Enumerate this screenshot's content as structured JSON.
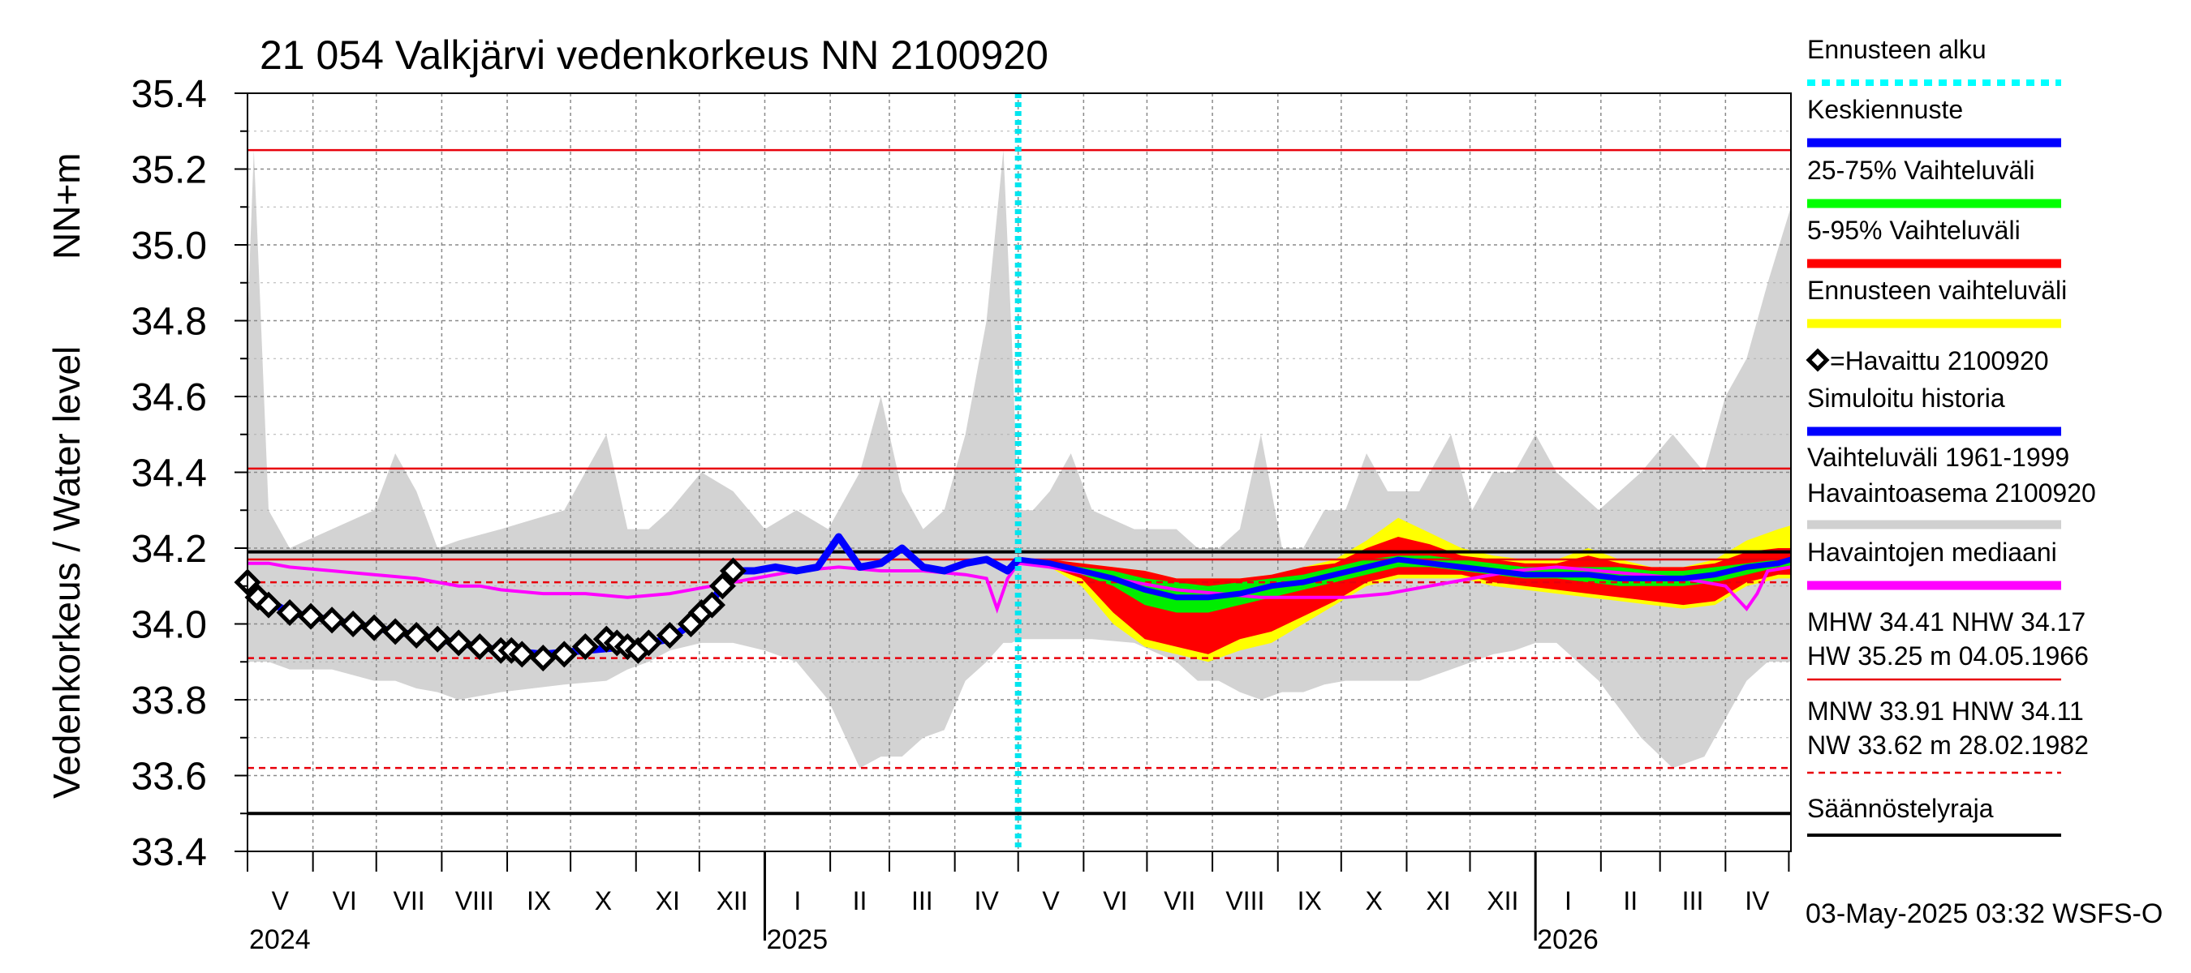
{
  "chart_data": {
    "type": "line",
    "title": "21 054 Valkjärvi vedenkorkeus NN 2100920",
    "ylabel_top": "NN+m",
    "ylabel": "Vedenkorkeus / Water level",
    "ylim": [
      33.4,
      35.4
    ],
    "y_ticks": [
      "35.4",
      "35.2",
      "35.0",
      "34.8",
      "34.6",
      "34.4",
      "34.2",
      "34.0",
      "33.8",
      "33.6",
      "33.4"
    ],
    "x_months": [
      "V",
      "VI",
      "VII",
      "VIII",
      "IX",
      "X",
      "XI",
      "XII",
      "I",
      "II",
      "III",
      "IV",
      "V",
      "VI",
      "VII",
      "VIII",
      "IX",
      "X",
      "XI",
      "XII",
      "I",
      "II",
      "III",
      "IV"
    ],
    "x_years": [
      "2024",
      "2025",
      "2026"
    ],
    "forecast_start_day": 365,
    "reference_lines": [
      {
        "name": "HW",
        "value": 35.25,
        "color": "#e8000b",
        "style": "solid"
      },
      {
        "name": "MHW",
        "value": 34.41,
        "color": "#e8000b",
        "style": "solid"
      },
      {
        "name": "Säännöstelyraja upper",
        "value": 34.19,
        "color": "#000000",
        "style": "solid"
      },
      {
        "name": "NHW",
        "value": 34.17,
        "color": "#e8000b",
        "style": "solid"
      },
      {
        "name": "HNW",
        "value": 34.11,
        "color": "#e8000b",
        "style": "dashed"
      },
      {
        "name": "MNW",
        "value": 33.91,
        "color": "#e8000b",
        "style": "dashed"
      },
      {
        "name": "NW",
        "value": 33.62,
        "color": "#e8000b",
        "style": "dashed"
      },
      {
        "name": "Säännöstelyraja lower",
        "value": 33.5,
        "color": "#000000",
        "style": "solid"
      }
    ],
    "historical_range": {
      "days": [
        0,
        3,
        6,
        10,
        20,
        40,
        60,
        70,
        80,
        90,
        100,
        120,
        150,
        170,
        180,
        190,
        200,
        215,
        230,
        245,
        260,
        275,
        290,
        300,
        310,
        320,
        330,
        340,
        350,
        358,
        362,
        365,
        372,
        380,
        390,
        400,
        420,
        440,
        450,
        460,
        470,
        480,
        490,
        500,
        510,
        520,
        530,
        540,
        555,
        570,
        580,
        590,
        600,
        610,
        620,
        640,
        660,
        675,
        690,
        700,
        710,
        720,
        731
      ],
      "upper": [
        34.8,
        35.25,
        34.85,
        34.3,
        34.2,
        34.25,
        34.3,
        34.45,
        34.35,
        34.2,
        34.22,
        34.25,
        34.3,
        34.5,
        34.25,
        34.25,
        34.3,
        34.4,
        34.35,
        34.25,
        34.3,
        34.25,
        34.4,
        34.6,
        34.35,
        34.25,
        34.3,
        34.5,
        34.8,
        35.25,
        34.75,
        34.3,
        34.3,
        34.35,
        34.45,
        34.3,
        34.25,
        34.25,
        34.2,
        34.2,
        34.25,
        34.5,
        34.2,
        34.2,
        34.3,
        34.3,
        34.45,
        34.35,
        34.35,
        34.5,
        34.3,
        34.4,
        34.4,
        34.5,
        34.4,
        34.3,
        34.4,
        34.5,
        34.4,
        34.6,
        34.7,
        34.9,
        35.1
      ],
      "lower": [
        33.9,
        33.9,
        33.9,
        33.9,
        33.88,
        33.88,
        33.85,
        33.85,
        33.83,
        33.82,
        33.8,
        33.82,
        33.84,
        33.85,
        33.88,
        33.9,
        33.93,
        33.95,
        33.95,
        33.93,
        33.9,
        33.8,
        33.62,
        33.65,
        33.65,
        33.7,
        33.72,
        33.85,
        33.9,
        33.95,
        33.95,
        33.96,
        33.96,
        33.96,
        33.96,
        33.96,
        33.95,
        33.9,
        33.85,
        33.85,
        33.82,
        33.8,
        33.82,
        33.82,
        33.84,
        33.85,
        33.85,
        33.85,
        33.85,
        33.88,
        33.9,
        33.92,
        33.93,
        33.95,
        33.95,
        33.85,
        33.7,
        33.62,
        33.65,
        33.75,
        33.85,
        33.9,
        33.9
      ]
    },
    "forecast_bands": {
      "days": [
        365,
        380,
        395,
        410,
        425,
        440,
        455,
        470,
        485,
        500,
        515,
        530,
        545,
        560,
        575,
        590,
        605,
        620,
        635,
        650,
        665,
        680,
        695,
        710,
        725,
        731
      ],
      "outer_upper": [
        34.17,
        34.17,
        34.16,
        34.15,
        34.14,
        34.12,
        34.12,
        34.12,
        34.13,
        34.15,
        34.17,
        34.22,
        34.28,
        34.24,
        34.2,
        34.18,
        34.17,
        34.17,
        34.2,
        34.17,
        34.15,
        34.15,
        34.17,
        34.22,
        34.25,
        34.26
      ],
      "outer_lower": [
        34.17,
        34.15,
        34.1,
        34.0,
        33.94,
        33.92,
        33.9,
        33.93,
        33.95,
        34.0,
        34.05,
        34.1,
        34.12,
        34.12,
        34.12,
        34.1,
        34.09,
        34.08,
        34.07,
        34.06,
        34.05,
        34.04,
        34.05,
        34.1,
        34.12,
        34.12
      ],
      "p95": [
        34.17,
        34.17,
        34.16,
        34.15,
        34.14,
        34.12,
        34.12,
        34.12,
        34.13,
        34.15,
        34.16,
        34.2,
        34.23,
        34.21,
        34.18,
        34.17,
        34.16,
        34.16,
        34.18,
        34.16,
        34.15,
        34.15,
        34.16,
        34.19,
        34.2,
        34.2
      ],
      "p5": [
        34.17,
        34.15,
        34.12,
        34.03,
        33.96,
        33.94,
        33.92,
        33.96,
        33.98,
        34.02,
        34.06,
        34.11,
        34.13,
        34.13,
        34.13,
        34.11,
        34.1,
        34.09,
        34.08,
        34.07,
        34.06,
        34.05,
        34.06,
        34.11,
        34.13,
        34.13
      ],
      "p75": [
        34.17,
        34.16,
        34.15,
        34.14,
        34.12,
        34.11,
        34.1,
        34.11,
        34.12,
        34.13,
        34.15,
        34.17,
        34.18,
        34.18,
        34.17,
        34.16,
        34.15,
        34.15,
        34.15,
        34.15,
        34.14,
        34.14,
        34.15,
        34.16,
        34.17,
        34.17
      ],
      "p25": [
        34.17,
        34.16,
        34.13,
        34.1,
        34.05,
        34.03,
        34.03,
        34.05,
        34.07,
        34.09,
        34.11,
        34.13,
        34.15,
        34.15,
        34.14,
        34.13,
        34.12,
        34.12,
        34.11,
        34.1,
        34.1,
        34.1,
        34.11,
        34.13,
        34.15,
        34.15
      ],
      "mean": [
        34.17,
        34.16,
        34.14,
        34.12,
        34.09,
        34.07,
        34.07,
        34.08,
        34.1,
        34.11,
        34.13,
        34.15,
        34.17,
        34.16,
        34.15,
        34.14,
        34.13,
        34.13,
        34.13,
        34.12,
        34.12,
        34.12,
        34.13,
        34.15,
        34.16,
        34.17
      ]
    },
    "observed": {
      "name": "Havaittu 2100920",
      "days": [
        0,
        5,
        10,
        20,
        30,
        40,
        50,
        60,
        70,
        80,
        90,
        100,
        110,
        120,
        125,
        130,
        140,
        150,
        160,
        170,
        175,
        180,
        185,
        190,
        200,
        210,
        215,
        220,
        225,
        230
      ],
      "values": [
        34.11,
        34.07,
        34.05,
        34.03,
        34.02,
        34.01,
        34.0,
        33.99,
        33.98,
        33.97,
        33.96,
        33.95,
        33.94,
        33.93,
        33.93,
        33.92,
        33.91,
        33.92,
        33.94,
        33.96,
        33.95,
        33.94,
        33.93,
        33.95,
        33.97,
        34.0,
        34.03,
        34.05,
        34.1,
        34.14
      ]
    },
    "simulated": {
      "name": "Simuloitu historia",
      "days": [
        0,
        10,
        20,
        40,
        60,
        80,
        100,
        120,
        140,
        160,
        180,
        200,
        215,
        225,
        230,
        240,
        250,
        260,
        270,
        280,
        290,
        300,
        310,
        320,
        330,
        340,
        350,
        360,
        365
      ],
      "values": [
        34.1,
        34.06,
        34.03,
        34.01,
        33.99,
        33.97,
        33.95,
        33.93,
        33.92,
        33.93,
        33.94,
        33.96,
        34.02,
        34.1,
        34.14,
        34.14,
        34.15,
        34.14,
        34.15,
        34.23,
        34.15,
        34.16,
        34.2,
        34.15,
        34.14,
        34.16,
        34.17,
        34.14,
        34.17
      ]
    },
    "median": {
      "name": "Havaintojen mediaani",
      "days": [
        0,
        10,
        20,
        40,
        60,
        80,
        90,
        100,
        110,
        120,
        140,
        160,
        180,
        200,
        220,
        240,
        260,
        280,
        300,
        320,
        340,
        350,
        355,
        360,
        365,
        380,
        400,
        420,
        440,
        460,
        480,
        500,
        520,
        540,
        560,
        580,
        600,
        620,
        640,
        660,
        680,
        700,
        710,
        715,
        720,
        731
      ],
      "values": [
        34.16,
        34.16,
        34.15,
        34.14,
        34.13,
        34.12,
        34.11,
        34.1,
        34.1,
        34.09,
        34.08,
        34.08,
        34.07,
        34.08,
        34.1,
        34.12,
        34.14,
        34.15,
        34.14,
        34.14,
        34.13,
        34.12,
        34.04,
        34.12,
        34.16,
        34.15,
        34.13,
        34.11,
        34.09,
        34.08,
        34.07,
        34.07,
        34.07,
        34.08,
        34.1,
        34.12,
        34.14,
        34.15,
        34.14,
        34.13,
        34.12,
        34.1,
        34.04,
        34.08,
        34.14,
        34.15
      ]
    },
    "legend": [
      {
        "label": "Ennusteen alku",
        "color": "#00ffff",
        "kind": "dotted"
      },
      {
        "label": "Keskiennuste",
        "color": "#0000ff",
        "kind": "line"
      },
      {
        "label": "25-75% Vaihteluväli",
        "color": "#00ff00",
        "kind": "line"
      },
      {
        "label": "5-95% Vaihteluväli",
        "color": "#ff0000",
        "kind": "line"
      },
      {
        "label": "Ennusteen vaihteluväli",
        "color": "#ffff00",
        "kind": "line"
      },
      {
        "label": "=Havaittu 2100920",
        "color": "#000000",
        "kind": "marker"
      },
      {
        "label": "Simuloitu historia",
        "color": "#0000ff",
        "kind": "line"
      },
      {
        "label": "Vaihteluväli 1961-1999",
        "label2": " Havaintoasema 2100920",
        "color": "#d0d0d0",
        "kind": "line"
      },
      {
        "label": "Havaintojen mediaani",
        "color": "#ff00ff",
        "kind": "line"
      }
    ],
    "stats": {
      "row1": "MHW  34.41 NHW  34.17",
      "row2": "HW  35.25 m 04.05.1966",
      "row3": "MNW  33.91 HNW  34.11",
      "row4": "NW  33.62 m 28.02.1982",
      "regulation": "Säännöstelyraja"
    },
    "footer": "03-May-2025 03:32 WSFS-O"
  }
}
